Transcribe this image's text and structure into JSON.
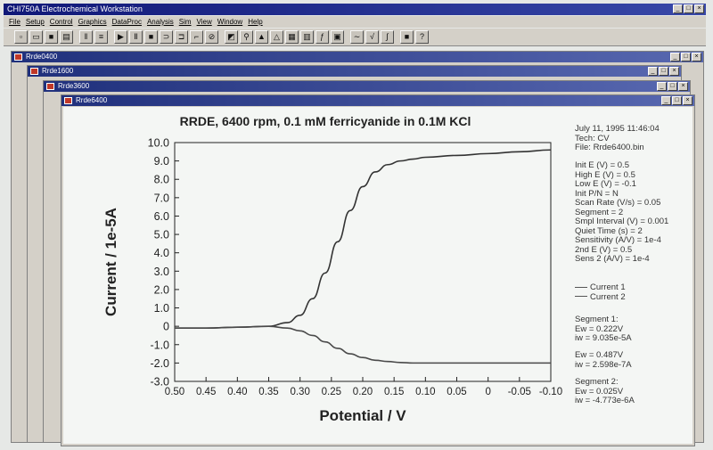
{
  "app": {
    "title": "CHI750A Electrochemical Workstation",
    "menu": [
      "File",
      "Setup",
      "Control",
      "Graphics",
      "DataProc",
      "Analysis",
      "Sim",
      "View",
      "Window",
      "Help"
    ],
    "toolbar_icons": [
      "new-file-icon",
      "open-folder-icon",
      "save-icon",
      "print-icon",
      "columns-icon",
      "parameters-icon",
      "run-icon",
      "pause-icon",
      "stop-icon",
      "reverse-scan-icon",
      "next-segment-icon",
      "ir-comp-icon",
      "cell-icon",
      "graph-icon",
      "zoom-icon",
      "peak-icon",
      "sim-icon",
      "overlay-icon",
      "color-icon",
      "font-icon",
      "copy-icon",
      "smooth-icon",
      "derivative-icon",
      "integrate-icon",
      "filter-icon",
      "help-icon"
    ],
    "windows": [
      "Rrde0400",
      "Rrde1600",
      "Rrde3600",
      "Rrde6400"
    ],
    "window_controls": {
      "minimize": "_",
      "restore": "□",
      "close": "×"
    }
  },
  "info_panel": {
    "header": [
      "July 11, 1995    11:46:04",
      "Tech: CV",
      "File: Rrde6400.bin"
    ],
    "params": [
      "Init E (V) = 0.5",
      "High E (V) = 0.5",
      "Low E (V) = -0.1",
      "Init P/N = N",
      "Scan Rate (V/s) = 0.05",
      "Segment = 2",
      "Smpl Interval (V) = 0.001",
      "Quiet Time (s) = 2",
      "Sensitivity (A/V) = 1e-4",
      "2nd E (V) = 0.5",
      "Sens 2 (A/V) = 1e-4"
    ],
    "legend": [
      "Current 1",
      "Current 2"
    ],
    "seg1": [
      "Segment 1:",
      "Ew = 0.222V",
      "iw = 9.035e-5A"
    ],
    "seg1b": [
      "Ew = 0.487V",
      "iw = 2.598e-7A"
    ],
    "seg2": [
      "Segment 2:",
      "Ew = 0.025V",
      "iw = -4.773e-6A"
    ]
  },
  "chart_data": {
    "type": "line",
    "title": "RRDE, 6400 rpm, 0.1 mM ferricyanide in 0.1M KCl",
    "xlabel": "Potential / V",
    "ylabel": "Current / 1e-5A",
    "xlim": [
      0.5,
      -0.1
    ],
    "ylim": [
      -3.0,
      10.0
    ],
    "x_ticks": [
      "0.50",
      "0.45",
      "0.40",
      "0.35",
      "0.30",
      "0.25",
      "0.20",
      "0.15",
      "0.10",
      "0.05",
      "0",
      "-0.05",
      "-0.10"
    ],
    "y_ticks": [
      "10.0",
      "9.0",
      "8.0",
      "7.0",
      "6.0",
      "5.0",
      "4.0",
      "3.0",
      "2.0",
      "1.0",
      "0",
      "-1.0",
      "-2.0",
      "-3.0"
    ],
    "series": [
      {
        "name": "Current 1",
        "x": [
          0.5,
          0.45,
          0.4,
          0.35,
          0.32,
          0.3,
          0.28,
          0.26,
          0.24,
          0.22,
          0.2,
          0.18,
          0.16,
          0.14,
          0.12,
          0.1,
          0.05,
          0.0,
          -0.05,
          -0.1
        ],
        "y": [
          -0.1,
          -0.1,
          -0.05,
          0.0,
          0.2,
          0.6,
          1.5,
          2.9,
          4.6,
          6.3,
          7.6,
          8.4,
          8.8,
          9.0,
          9.1,
          9.2,
          9.3,
          9.4,
          9.5,
          9.6
        ]
      },
      {
        "name": "Current 2",
        "x": [
          0.5,
          0.45,
          0.4,
          0.35,
          0.32,
          0.3,
          0.28,
          0.26,
          0.24,
          0.22,
          0.2,
          0.18,
          0.16,
          0.14,
          0.12,
          0.1,
          0.05,
          0.0,
          -0.05,
          -0.1
        ],
        "y": [
          -0.1,
          -0.1,
          -0.05,
          0.0,
          -0.1,
          -0.25,
          -0.5,
          -0.85,
          -1.2,
          -1.5,
          -1.7,
          -1.85,
          -1.92,
          -1.97,
          -2.0,
          -2.0,
          -2.0,
          -2.0,
          -2.0,
          -2.0
        ]
      }
    ],
    "grid": false,
    "legend_position": "right"
  }
}
